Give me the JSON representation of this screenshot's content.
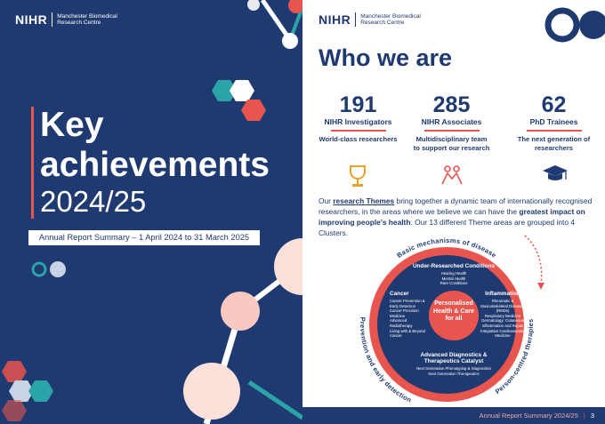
{
  "left_page": {
    "logo": {
      "brand": "NIHR",
      "org_line1": "Manchester Biomedical",
      "org_line2": "Research Centre"
    },
    "title_line1": "Key",
    "title_line2": "achievements",
    "year": "2024/25",
    "subtitle": "Annual Report Summary – 1 April 2024 to 31 March 2025"
  },
  "right_page": {
    "logo": {
      "brand": "NIHR",
      "org_line1": "Manchester Biomedical",
      "org_line2": "Research Centre"
    },
    "heading": "Who we are",
    "stats": [
      {
        "number": 191,
        "label": "NIHR Investigators",
        "description": "World-class researchers"
      },
      {
        "number": 285,
        "label": "NIHR Associates",
        "description": "Multidisciplinary team to support our research"
      },
      {
        "number": 62,
        "label": "PhD Trainees",
        "description": "The next generation of researchers"
      }
    ],
    "intro": [
      "Our ",
      "research Themes",
      " bring together a dynamic team of internationally recognised researchers, in the areas where we believe we can have the ",
      "greatest impact on improving people’s health",
      ". Our 13 different Theme areas are grouped into 4 Clusters."
    ],
    "diagram": {
      "outer_labels": [
        "Basic mechanisms of disease",
        "Prevention and early detection",
        "Person-centred therapies"
      ],
      "center": "Personalised Health & Care for all",
      "clusters": [
        {
          "name": "Under-Researched Conditions",
          "themes": [
            "Hearing Health",
            "Mental Health",
            "Rare Conditions"
          ]
        },
        {
          "name": "Cancer",
          "themes": [
            "Cancer Prevention & Early Detection",
            "Cancer Precision Medicine",
            "Advanced Radiotherapy",
            "Living with & Beyond Cancer"
          ]
        },
        {
          "name": "Inflammation",
          "themes": [
            "Rheumatic & Musculoskeletal Diseases (RMDs)",
            "Respiratory Medicine",
            "Dermatology: Cutaneous Inflammation and Repair",
            "Integrative Cardiovascular Medicine"
          ]
        },
        {
          "name": "Advanced Diagnostics & Therapeutics Catalyst",
          "themes": [
            "Next Generation Phenotyping & Diagnostics",
            "Next Generation Therapeutics"
          ]
        }
      ]
    },
    "footer": {
      "text": "Annual Report Summary 2024/25",
      "page": 3
    }
  }
}
